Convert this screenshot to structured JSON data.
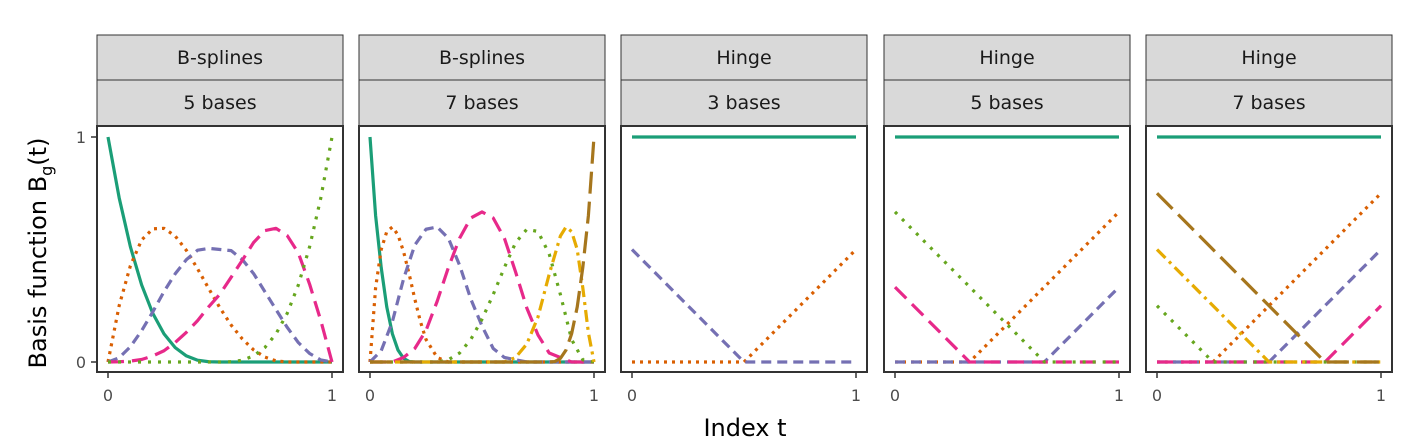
{
  "chart_data": {
    "type": "line",
    "xlabel": "Index t",
    "ylabel_main": "Basis function B",
    "ylabel_sub": "g",
    "ylabel_tail": "(t)",
    "xlim": [
      0,
      1
    ],
    "ylim": [
      0,
      1
    ],
    "x_ticks": [
      0,
      1
    ],
    "y_ticks": [
      0,
      1
    ],
    "grid": false,
    "legend": "none",
    "style_palette": [
      {
        "color": "#1B9E77",
        "dash": ""
      },
      {
        "color": "#D95F02",
        "dash": "3 5"
      },
      {
        "color": "#7570B3",
        "dash": "10 6"
      },
      {
        "color": "#E7298A",
        "dash": "16 8"
      },
      {
        "color": "#66A61E",
        "dash": "3 7"
      },
      {
        "color": "#E6AB02",
        "dash": "12 5 3 5"
      },
      {
        "color": "#A6761D",
        "dash": "22 8"
      }
    ],
    "panels": [
      {
        "strip1": "B-splines",
        "strip2": "5 bases",
        "family": "bspline",
        "series": [
          {
            "style": 0,
            "x": [
              0,
              0.05,
              0.1,
              0.15,
              0.2,
              0.25,
              0.3,
              0.35,
              0.4,
              0.45,
              0.5,
              0.55,
              0.6,
              0.65,
              0.7,
              0.75,
              0.8,
              0.85,
              0.9,
              0.95,
              1
            ],
            "y": [
              1,
              0.729,
              0.512,
              0.343,
              0.216,
              0.125,
              0.064,
              0.027,
              0.008,
              0.001,
              0,
              0,
              0,
              0,
              0,
              0,
              0,
              0,
              0,
              0,
              0
            ]
          },
          {
            "style": 1,
            "x": [
              0,
              0.05,
              0.1,
              0.15,
              0.2,
              0.25,
              0.3,
              0.35,
              0.4,
              0.45,
              0.5,
              0.55,
              0.6,
              0.65,
              0.7,
              0.75,
              0.8,
              0.85,
              0.9,
              0.95,
              1
            ],
            "y": [
              0,
              0.251,
              0.428,
              0.542,
              0.592,
              0.594,
              0.56,
              0.496,
              0.414,
              0.326,
              0.24,
              0.164,
              0.102,
              0.054,
              0.022,
              0.005,
              0,
              0,
              0,
              0,
              0
            ]
          },
          {
            "style": 2,
            "x": [
              0,
              0.05,
              0.1,
              0.15,
              0.2,
              0.25,
              0.3,
              0.35,
              0.4,
              0.45,
              0.5,
              0.55,
              0.6,
              0.65,
              0.7,
              0.75,
              0.8,
              0.85,
              0.9,
              0.95,
              1
            ],
            "y": [
              0,
              0.019,
              0.068,
              0.139,
              0.223,
              0.313,
              0.392,
              0.455,
              0.497,
              0.505,
              0.5,
              0.495,
              0.455,
              0.393,
              0.313,
              0.233,
              0.154,
              0.086,
              0.038,
              0.009,
              0
            ]
          },
          {
            "style": 3,
            "x": [
              0,
              0.05,
              0.1,
              0.15,
              0.2,
              0.25,
              0.3,
              0.35,
              0.4,
              0.45,
              0.5,
              0.55,
              0.6,
              0.65,
              0.7,
              0.75,
              0.8,
              0.85,
              0.9,
              0.95,
              1
            ],
            "y": [
              0,
              0.001,
              0.004,
              0.011,
              0.027,
              0.05,
              0.087,
              0.132,
              0.184,
              0.246,
              0.302,
              0.377,
              0.453,
              0.531,
              0.584,
              0.594,
              0.562,
              0.484,
              0.346,
              0.184,
              0
            ]
          },
          {
            "style": 4,
            "x": [
              0,
              0.05,
              0.1,
              0.15,
              0.2,
              0.25,
              0.3,
              0.35,
              0.4,
              0.45,
              0.5,
              0.55,
              0.6,
              0.65,
              0.7,
              0.75,
              0.8,
              0.85,
              0.9,
              0.95,
              1
            ],
            "y": [
              0,
              0,
              0,
              0,
              0,
              0,
              0,
              0,
              0,
              0,
              0,
              0.001,
              0.008,
              0.027,
              0.064,
              0.125,
              0.216,
              0.343,
              0.512,
              0.729,
              1
            ]
          }
        ]
      },
      {
        "strip1": "B-splines",
        "strip2": "7 bases",
        "family": "bspline",
        "series": [
          {
            "style": 0,
            "x": [
              0,
              0.025,
              0.05,
              0.075,
              0.1,
              0.125,
              0.15,
              0.175,
              0.2,
              0.25,
              0.3,
              0.4,
              0.5,
              0.6,
              0.7,
              0.8,
              0.9,
              1
            ],
            "y": [
              1,
              0.651,
              0.42,
              0.244,
              0.125,
              0.053,
              0.016,
              0.002,
              0,
              0,
              0,
              0,
              0,
              0,
              0,
              0,
              0,
              0
            ]
          },
          {
            "style": 1,
            "x": [
              0,
              0.025,
              0.05,
              0.075,
              0.1,
              0.125,
              0.15,
              0.175,
              0.2,
              0.225,
              0.25,
              0.3,
              0.35,
              0.4,
              0.5,
              0.6,
              0.7,
              0.8,
              0.9,
              1
            ],
            "y": [
              0,
              0.33,
              0.5,
              0.58,
              0.6,
              0.565,
              0.49,
              0.39,
              0.28,
              0.18,
              0.1,
              0.02,
              0,
              0,
              0,
              0,
              0,
              0,
              0,
              0
            ]
          },
          {
            "style": 2,
            "x": [
              0,
              0.05,
              0.1,
              0.15,
              0.2,
              0.25,
              0.3,
              0.35,
              0.4,
              0.45,
              0.5,
              0.55,
              0.6,
              0.7,
              0.8,
              0.9,
              1
            ],
            "y": [
              0,
              0.05,
              0.18,
              0.37,
              0.52,
              0.59,
              0.6,
              0.55,
              0.43,
              0.28,
              0.16,
              0.06,
              0.02,
              0,
              0,
              0,
              0
            ]
          },
          {
            "style": 3,
            "x": [
              0,
              0.1,
              0.15,
              0.2,
              0.25,
              0.3,
              0.35,
              0.4,
              0.45,
              0.5,
              0.55,
              0.6,
              0.65,
              0.7,
              0.75,
              0.8,
              0.9,
              1
            ],
            "y": [
              0,
              0,
              0.02,
              0.06,
              0.14,
              0.27,
              0.42,
              0.55,
              0.64,
              0.667,
              0.64,
              0.55,
              0.4,
              0.24,
              0.12,
              0.04,
              0,
              0
            ]
          },
          {
            "style": 4,
            "x": [
              0,
              0.3,
              0.35,
              0.4,
              0.45,
              0.5,
              0.55,
              0.6,
              0.65,
              0.7,
              0.75,
              0.8,
              0.85,
              0.9,
              0.95,
              1
            ],
            "y": [
              0,
              0,
              0.01,
              0.04,
              0.1,
              0.19,
              0.3,
              0.42,
              0.53,
              0.59,
              0.58,
              0.48,
              0.3,
              0.1,
              0.01,
              0
            ]
          },
          {
            "style": 5,
            "x": [
              0,
              0.6,
              0.65,
              0.7,
              0.75,
              0.8,
              0.85,
              0.875,
              0.9,
              0.925,
              0.95,
              0.975,
              1
            ],
            "y": [
              0,
              0,
              0.02,
              0.08,
              0.2,
              0.39,
              0.56,
              0.6,
              0.58,
              0.5,
              0.33,
              0.13,
              0
            ]
          },
          {
            "style": 6,
            "x": [
              0,
              0.8,
              0.825,
              0.85,
              0.875,
              0.9,
              0.925,
              0.95,
              0.975,
              1
            ],
            "y": [
              0,
              0,
              0.002,
              0.016,
              0.053,
              0.125,
              0.244,
              0.42,
              0.651,
              1
            ]
          }
        ]
      },
      {
        "strip1": "Hinge",
        "strip2": "3 bases",
        "family": "hinge",
        "series": [
          {
            "style": 0,
            "x": [
              0,
              1
            ],
            "y": [
              1,
              1
            ]
          },
          {
            "style": 1,
            "x": [
              0,
              0.5,
              1
            ],
            "y": [
              0,
              0,
              0.5
            ]
          },
          {
            "style": 2,
            "x": [
              0,
              0.5,
              1
            ],
            "y": [
              0.5,
              0,
              0
            ]
          }
        ]
      },
      {
        "strip1": "Hinge",
        "strip2": "5 bases",
        "family": "hinge",
        "series": [
          {
            "style": 0,
            "x": [
              0,
              1
            ],
            "y": [
              1,
              1
            ]
          },
          {
            "style": 1,
            "x": [
              0,
              0.333,
              1
            ],
            "y": [
              0,
              0,
              0.667
            ]
          },
          {
            "style": 2,
            "x": [
              0,
              0.667,
              1
            ],
            "y": [
              0,
              0,
              0.333
            ]
          },
          {
            "style": 3,
            "x": [
              0,
              0.333,
              1
            ],
            "y": [
              0.333,
              0,
              0
            ]
          },
          {
            "style": 4,
            "x": [
              0,
              0.667,
              1
            ],
            "y": [
              0.667,
              0,
              0
            ]
          }
        ]
      },
      {
        "strip1": "Hinge",
        "strip2": "7 bases",
        "family": "hinge",
        "series": [
          {
            "style": 0,
            "x": [
              0,
              1
            ],
            "y": [
              1,
              1
            ]
          },
          {
            "style": 1,
            "x": [
              0,
              0.25,
              1
            ],
            "y": [
              0,
              0,
              0.75
            ]
          },
          {
            "style": 2,
            "x": [
              0,
              0.5,
              1
            ],
            "y": [
              0,
              0,
              0.5
            ]
          },
          {
            "style": 3,
            "x": [
              0,
              0.75,
              1
            ],
            "y": [
              0,
              0,
              0.25
            ]
          },
          {
            "style": 4,
            "x": [
              0,
              0.25,
              1
            ],
            "y": [
              0.25,
              0,
              0
            ]
          },
          {
            "style": 5,
            "x": [
              0,
              0.5,
              1
            ],
            "y": [
              0.5,
              0,
              0
            ]
          },
          {
            "style": 6,
            "x": [
              0,
              0.75,
              1
            ],
            "y": [
              0.75,
              0,
              0
            ]
          }
        ]
      }
    ]
  }
}
